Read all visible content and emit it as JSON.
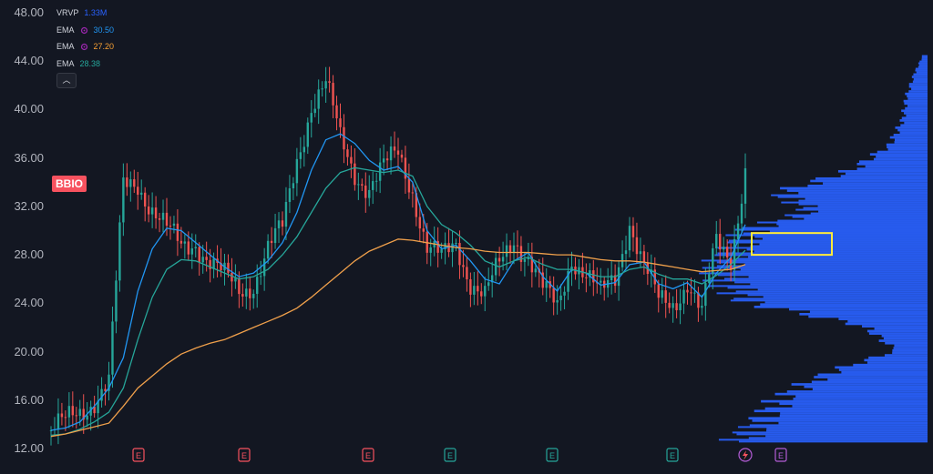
{
  "symbol_badge": "BBIO",
  "indicators": [
    {
      "name": "VRVP",
      "value": "1.33M",
      "color": "#2962ff",
      "has_gear": false
    },
    {
      "name": "EMA",
      "value": "30.50",
      "color": "#2196f3",
      "has_gear": true
    },
    {
      "name": "EMA",
      "value": "27.20",
      "color": "#f7a034",
      "has_gear": true
    },
    {
      "name": "EMA",
      "value": "28.38",
      "color": "#26a69a",
      "has_gear": false
    }
  ],
  "collapse_icon": "chevron-up-icon",
  "colors": {
    "up": "#26a69a",
    "down": "#ef5350",
    "ema_fast": "#2196f3",
    "ema_mid": "#26a69a",
    "ema_slow": "#f0a04b",
    "volume_profile": "#2962ff",
    "highlight_box": "#ffeb3b",
    "earnings_red": "#f7525f",
    "earnings_green": "#26a69a",
    "earnings_purple": "#b35cd6"
  },
  "chart_data": {
    "type": "candlestick",
    "title": "BBIO",
    "ylim": [
      12,
      48
    ],
    "y_ticks": [
      "48.00",
      "44.00",
      "40.00",
      "36.00",
      "32.00",
      "28.00",
      "24.00",
      "20.00",
      "16.00",
      "12.00"
    ],
    "series": [
      {
        "name": "EMA",
        "value_label": "30.50",
        "values": [
          13.5,
          13.7,
          14.2,
          15.5,
          17,
          19.5,
          25,
          28.5,
          30.2,
          30,
          29,
          28,
          27,
          26.2,
          26.5,
          27.5,
          29,
          31.5,
          35,
          37.5,
          38,
          37.2,
          35.8,
          35,
          35.3,
          34,
          30,
          28.5,
          28.8,
          27.5,
          26,
          25.6,
          27.5,
          28.2,
          26.2,
          25,
          26.8,
          26.5,
          25.5,
          25.7,
          27.2,
          27.4,
          25.6,
          25.2,
          25.7,
          24.5,
          26.5,
          27.8,
          30.5
        ]
      },
      {
        "name": "EMA",
        "value_label": "28.38",
        "values": [
          13.1,
          13.2,
          13.6,
          14.2,
          15,
          17,
          21,
          24.5,
          26.8,
          27.6,
          27.5,
          27,
          26.5,
          26,
          26.2,
          26.8,
          28,
          29.5,
          31.5,
          33.5,
          34.8,
          35.2,
          35,
          34.8,
          35,
          34.5,
          32,
          30.5,
          29.8,
          28.8,
          27.5,
          27,
          27.5,
          27.8,
          27.2,
          26.8,
          26.8,
          26.5,
          26.2,
          26.2,
          26.8,
          27,
          26.4,
          26,
          26,
          25.6,
          26.3,
          27.2,
          28.38
        ]
      },
      {
        "name": "EMA",
        "value_label": "27.20",
        "values": [
          13,
          13.2,
          13.5,
          13.8,
          14.1,
          15.5,
          17,
          18,
          19,
          19.8,
          20.3,
          20.7,
          21,
          21.5,
          22,
          22.5,
          23,
          23.6,
          24.5,
          25.5,
          26.5,
          27.5,
          28.3,
          28.8,
          29.3,
          29.2,
          29,
          28.8,
          28.6,
          28.5,
          28.3,
          28.2,
          28.2,
          28.2,
          28.1,
          28,
          28,
          27.8,
          27.6,
          27.5,
          27.5,
          27.4,
          27.2,
          27,
          26.8,
          26.6,
          26.7,
          26.8,
          27.2
        ]
      }
    ],
    "approx_price_path": [
      13.5,
      14,
      15,
      16.2,
      17.5,
      33.5,
      34,
      32,
      30,
      28.5,
      29.2,
      27.5,
      26,
      25,
      25.8,
      28.5,
      30,
      36,
      40.5,
      42,
      37.5,
      35,
      33.5,
      35,
      36.5,
      33.5,
      28.5,
      27.5,
      29,
      26,
      24.5,
      27,
      29.5,
      28,
      25,
      23.5,
      28,
      26.5,
      24.5,
      26,
      31,
      27,
      24,
      24,
      26,
      23,
      29,
      28,
      35
    ],
    "volume_profile": {
      "name": "VRVP",
      "value_label": "1.33M",
      "levels": [
        12.5,
        14,
        16,
        18,
        20,
        22,
        24,
        25.5,
        27,
        28.5,
        30,
        31.5,
        33,
        35,
        37,
        39,
        41,
        43,
        44.5
      ],
      "relative_volume": [
        0.9,
        0.8,
        0.7,
        0.5,
        0.15,
        0.3,
        0.85,
        0.95,
        1.0,
        0.9,
        0.85,
        0.55,
        0.7,
        0.35,
        0.18,
        0.12,
        0.1,
        0.06,
        0.02
      ]
    },
    "highlight_range": [
      28.0,
      29.8
    ],
    "earnings_markers": [
      {
        "label": "E",
        "color": "red"
      },
      {
        "label": "E",
        "color": "red"
      },
      {
        "label": "E",
        "color": "red"
      },
      {
        "label": "E",
        "color": "green"
      },
      {
        "label": "E",
        "color": "green"
      },
      {
        "label": "E",
        "color": "green"
      },
      {
        "label": "E",
        "color": "purple"
      }
    ]
  }
}
